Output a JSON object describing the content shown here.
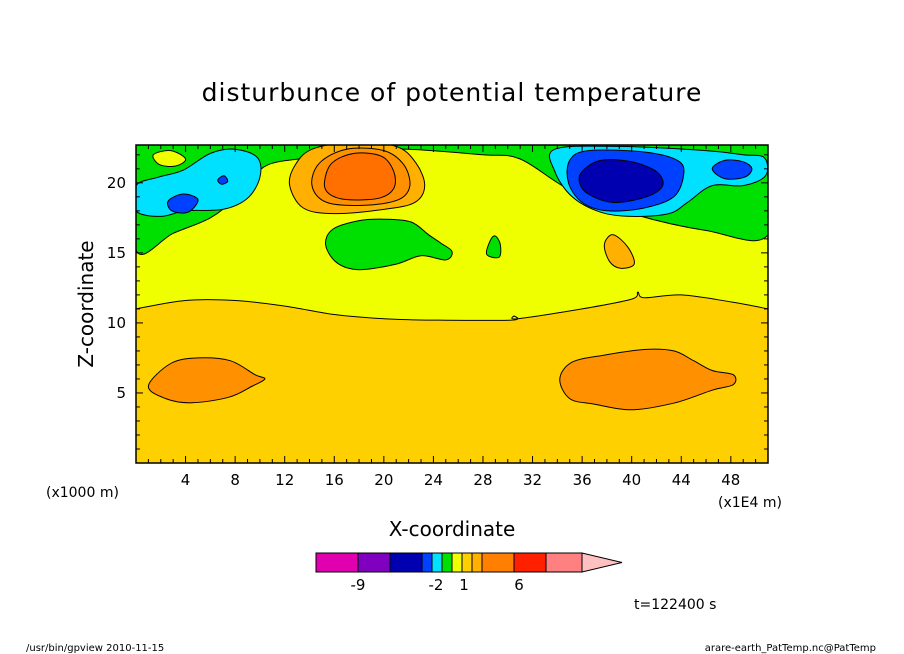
{
  "footer": {
    "left": "/usr/bin/gpview   2010-11-15",
    "right": "arare-earth_PatTemp.nc@PatTemp"
  },
  "time_label": "t=122400 s",
  "chart_data": {
    "type": "contour",
    "title": "disturbunce of potential temperature",
    "xlabel": "X-coordinate",
    "ylabel": "Z-coordinate",
    "x_unit": "(x1E4 m)",
    "y_unit": "(x1000 m)",
    "xlim": [
      0,
      51
    ],
    "ylim": [
      0,
      22.7
    ],
    "x_ticks": [
      4,
      8,
      12,
      16,
      20,
      24,
      28,
      32,
      36,
      40,
      44,
      48
    ],
    "y_ticks": [
      5,
      10,
      15,
      20
    ],
    "colorbar": {
      "colors": [
        "#e000b0",
        "#8000c0",
        "#0000b0",
        "#0040ff",
        "#00e0ff",
        "#00e000",
        "#f0ff00",
        "#ffd000",
        "#ffb000",
        "#ff8000",
        "#ff2000",
        "#ff8080",
        "#ffc0c0"
      ],
      "labels": [
        {
          "text": "-9",
          "level": -9
        },
        {
          "text": "-2",
          "level": -2
        },
        {
          "text": "1",
          "level": 1
        },
        {
          "text": "6",
          "level": 6
        }
      ]
    },
    "regions": [
      {
        "name": "green-upper",
        "color": "#00e000",
        "points": [
          [
            0,
            22.7
          ],
          [
            51,
            22.7
          ],
          [
            51,
            16.3
          ],
          [
            46,
            16.6
          ],
          [
            40,
            17.8
          ],
          [
            35,
            19.5
          ],
          [
            31,
            21.7
          ],
          [
            28,
            22.0
          ],
          [
            22,
            22.4
          ],
          [
            18,
            22.3
          ],
          [
            14,
            21.8
          ],
          [
            11,
            21.4
          ],
          [
            9.5,
            20.5
          ],
          [
            8,
            18.9
          ],
          [
            6,
            17.5
          ],
          [
            3,
            16.4
          ],
          [
            0,
            15.2
          ]
        ]
      },
      {
        "name": "cyan-left",
        "color": "#00e0ff",
        "points": [
          [
            0,
            19.8
          ],
          [
            1.8,
            20.4
          ],
          [
            3.8,
            20.9
          ],
          [
            6,
            22.1
          ],
          [
            8,
            22.4
          ],
          [
            9.8,
            21.8
          ],
          [
            10,
            20.4
          ],
          [
            9,
            18.9
          ],
          [
            7,
            18.1
          ],
          [
            4,
            18.0
          ],
          [
            2,
            17.6
          ],
          [
            0,
            18.0
          ]
        ]
      },
      {
        "name": "blue-left",
        "color": "#0040ff",
        "points": [
          [
            2.6,
            18.7
          ],
          [
            3.8,
            19.2
          ],
          [
            5,
            18.8
          ],
          [
            4.2,
            17.9
          ],
          [
            2.9,
            18.0
          ]
        ]
      },
      {
        "name": "blue-dot-left",
        "color": "#0040ff",
        "points": [
          [
            6.6,
            20.2
          ],
          [
            7.1,
            20.5
          ],
          [
            7.4,
            20.1
          ],
          [
            6.9,
            19.9
          ]
        ]
      },
      {
        "name": "yellow-upper-left",
        "color": "#f0ff00",
        "points": [
          [
            1.4,
            22.0
          ],
          [
            2.8,
            22.3
          ],
          [
            4,
            21.7
          ],
          [
            3.2,
            21.2
          ],
          [
            1.9,
            21.3
          ]
        ]
      },
      {
        "name": "cyan-right",
        "color": "#00e0ff",
        "points": [
          [
            33.8,
            22.4
          ],
          [
            39,
            22.6
          ],
          [
            46,
            22.3
          ],
          [
            49,
            22.0
          ],
          [
            50.7,
            21.8
          ],
          [
            50.8,
            20.5
          ],
          [
            49,
            19.8
          ],
          [
            46.5,
            19.8
          ],
          [
            44.5,
            18.6
          ],
          [
            43,
            17.8
          ],
          [
            40,
            17.6
          ],
          [
            37.5,
            17.9
          ],
          [
            35.2,
            19.0
          ],
          [
            33.8,
            20.8
          ]
        ]
      },
      {
        "name": "blue-right",
        "color": "#0040ff",
        "points": [
          [
            35,
            21.6
          ],
          [
            36.5,
            22.3
          ],
          [
            41,
            22.2
          ],
          [
            43.7,
            21.6
          ],
          [
            44.2,
            20.6
          ],
          [
            43.4,
            19.0
          ],
          [
            41,
            18.2
          ],
          [
            38,
            18.0
          ],
          [
            36,
            18.6
          ],
          [
            34.9,
            20.0
          ]
        ]
      },
      {
        "name": "darkblue-right",
        "color": "#0000b0",
        "points": [
          [
            36,
            20.8
          ],
          [
            37.5,
            21.6
          ],
          [
            40,
            21.5
          ],
          [
            42,
            20.8
          ],
          [
            42.5,
            19.8
          ],
          [
            41.2,
            19.0
          ],
          [
            38.5,
            18.6
          ],
          [
            36.5,
            19.2
          ],
          [
            35.8,
            20.0
          ]
        ]
      },
      {
        "name": "blue-small-right",
        "color": "#0040ff",
        "points": [
          [
            46.5,
            21.0
          ],
          [
            47.5,
            21.6
          ],
          [
            49,
            21.5
          ],
          [
            49.7,
            21.0
          ],
          [
            49.1,
            20.4
          ],
          [
            47.5,
            20.3
          ]
        ]
      },
      {
        "name": "orange-light-top",
        "color": "#ffb000",
        "points": [
          [
            12.4,
            19.8
          ],
          [
            12.8,
            21.2
          ],
          [
            14.2,
            22.4
          ],
          [
            17.5,
            22.9
          ],
          [
            21,
            22.6
          ],
          [
            22.6,
            21.4
          ],
          [
            23.3,
            19.8
          ],
          [
            22.5,
            18.6
          ],
          [
            20,
            18.1
          ],
          [
            16,
            17.8
          ],
          [
            13.5,
            18.2
          ]
        ]
      },
      {
        "name": "orange-mid-top",
        "color": "#ff9000",
        "points": [
          [
            14.2,
            19.8
          ],
          [
            14.8,
            21.4
          ],
          [
            17,
            22.4
          ],
          [
            20,
            22.3
          ],
          [
            21.6,
            21.3
          ],
          [
            22.1,
            19.8
          ],
          [
            21.2,
            18.8
          ],
          [
            18.5,
            18.4
          ],
          [
            15.4,
            18.6
          ]
        ]
      },
      {
        "name": "orange-core-top",
        "color": "#ff7000",
        "points": [
          [
            15.2,
            20.0
          ],
          [
            15.8,
            21.4
          ],
          [
            17.6,
            22.1
          ],
          [
            19.8,
            21.9
          ],
          [
            20.8,
            20.8
          ],
          [
            20.8,
            19.6
          ],
          [
            19.6,
            18.9
          ],
          [
            17.0,
            18.8
          ],
          [
            15.6,
            19.2
          ]
        ]
      },
      {
        "name": "green-mid",
        "color": "#00e000",
        "points": [
          [
            15.3,
            15.6
          ],
          [
            15.9,
            16.7
          ],
          [
            18,
            17.3
          ],
          [
            20,
            17.4
          ],
          [
            22.2,
            17.2
          ],
          [
            23.6,
            16.3
          ],
          [
            24.6,
            15.7
          ],
          [
            25.5,
            15.1
          ],
          [
            25,
            14.5
          ],
          [
            23,
            14.8
          ],
          [
            21,
            14.2
          ],
          [
            18,
            13.8
          ],
          [
            16.2,
            14.3
          ]
        ]
      },
      {
        "name": "green-small",
        "color": "#00e000",
        "points": [
          [
            28.3,
            14.9
          ],
          [
            28.6,
            15.9
          ],
          [
            29.0,
            16.2
          ],
          [
            29.4,
            15.6
          ],
          [
            29.3,
            14.7
          ]
        ]
      },
      {
        "name": "orange-light-small",
        "color": "#ffb000",
        "points": [
          [
            37.8,
            15.6
          ],
          [
            38.5,
            16.3
          ],
          [
            39.7,
            15.4
          ],
          [
            40.2,
            14.2
          ],
          [
            39.1,
            13.9
          ],
          [
            38.2,
            14.4
          ]
        ]
      },
      {
        "name": "orange-left",
        "color": "#ff9000",
        "points": [
          [
            1,
            5.5
          ],
          [
            2.8,
            7.1
          ],
          [
            5,
            7.5
          ],
          [
            7.6,
            7.3
          ],
          [
            9.6,
            6.3
          ],
          [
            10.4,
            6.0
          ],
          [
            9.4,
            5.5
          ],
          [
            7.5,
            4.7
          ],
          [
            4.5,
            4.3
          ],
          [
            2.4,
            4.6
          ]
        ]
      },
      {
        "name": "orange-right",
        "color": "#ff9000",
        "points": [
          [
            34.2,
            6.0
          ],
          [
            35.2,
            7.2
          ],
          [
            37.8,
            7.7
          ],
          [
            41,
            8.1
          ],
          [
            43.4,
            8.0
          ],
          [
            45,
            7.3
          ],
          [
            46.5,
            6.6
          ],
          [
            48.2,
            6.3
          ],
          [
            48.2,
            5.6
          ],
          [
            46.5,
            5.2
          ],
          [
            43.5,
            4.3
          ],
          [
            40,
            3.8
          ],
          [
            37,
            4.2
          ],
          [
            35,
            4.6
          ]
        ]
      }
    ],
    "iso_10_line": [
      [
        0,
        11.0
      ],
      [
        4,
        11.6
      ],
      [
        8,
        11.6
      ],
      [
        12,
        11.2
      ],
      [
        16,
        10.6
      ],
      [
        20,
        10.3
      ],
      [
        24,
        10.2
      ],
      [
        30.3,
        10.2
      ],
      [
        30.5,
        10.5
      ],
      [
        30.8,
        10.3
      ],
      [
        36,
        11.0
      ],
      [
        40,
        11.7
      ],
      [
        40.5,
        12.2
      ],
      [
        41,
        11.8
      ],
      [
        44,
        12.0
      ],
      [
        48,
        11.5
      ],
      [
        51,
        11.0
      ]
    ],
    "iso_15_line": [
      [
        0,
        15.2
      ],
      [
        1.5,
        15.5
      ],
      [
        3,
        16.4
      ],
      [
        6,
        17.5
      ]
    ]
  }
}
